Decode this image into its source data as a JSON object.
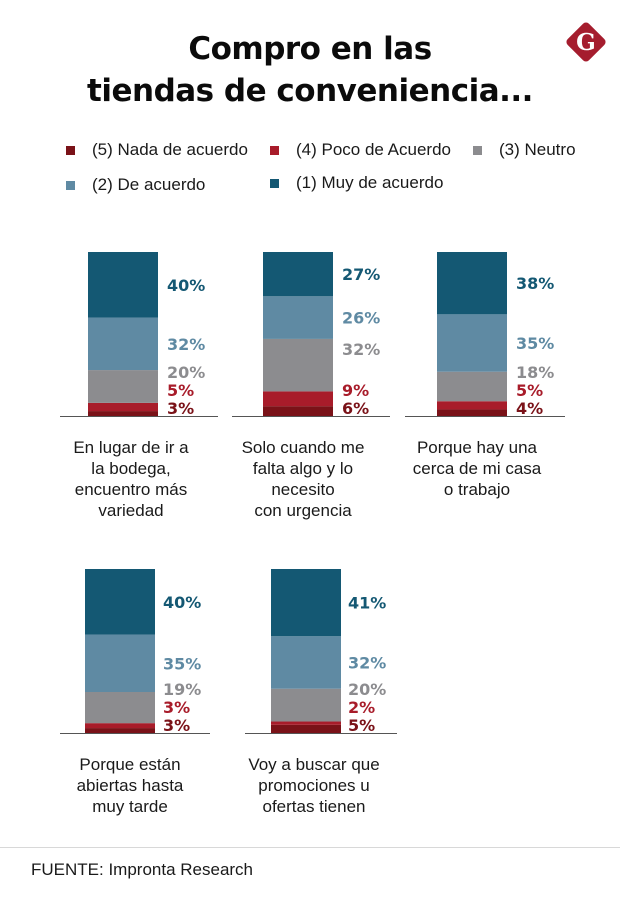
{
  "header": {
    "title_line1": "Compro en las",
    "title_line2": "tiendas de conveniencia...",
    "logo": "G",
    "logo_icon": "diamond-g-logo-icon"
  },
  "legend": [
    {
      "label": "(5) Nada de acuerdo",
      "color": "#7a1218"
    },
    {
      "label": "(4) Poco de Acuerdo",
      "color": "#a81c2a"
    },
    {
      "label": "(3) Neutro",
      "color": "#8c8c8f"
    },
    {
      "label": "(2) De acuerdo",
      "color": "#5f8aa3"
    },
    {
      "label": "(1) Muy de acuerdo",
      "color": "#145873"
    }
  ],
  "chart_data": {
    "type": "bar",
    "stacked": true,
    "title": "Compro en las tiendas de conveniencia...",
    "xlabel": "",
    "ylabel": "",
    "ylim": [
      0,
      100
    ],
    "unit": "%",
    "grid": false,
    "legend_position": "top",
    "categories": [
      [
        "En lugar de ir a",
        "la bodega,",
        "encuentro más",
        "variedad"
      ],
      [
        "Solo cuando me",
        "falta algo y lo",
        "necesito",
        "con urgencia"
      ],
      [
        "Porque hay una",
        "cerca de mi casa",
        "o trabajo"
      ],
      [
        "Porque están",
        "abiertas hasta",
        "muy tarde"
      ],
      [
        "Voy a buscar que",
        "promociones u",
        "ofertas tienen"
      ]
    ],
    "series": [
      {
        "name": "(5) Nada de acuerdo",
        "color": "#7a1218",
        "label_color": "#7a1218",
        "values": [
          3,
          6,
          4,
          3,
          5
        ]
      },
      {
        "name": "(4) Poco de Acuerdo",
        "color": "#a81c2a",
        "label_color": "#a81c2a",
        "values": [
          5,
          9,
          5,
          3,
          2
        ]
      },
      {
        "name": "(3) Neutro",
        "color": "#8c8c8f",
        "label_color": "#8c8c8f",
        "values": [
          20,
          32,
          18,
          19,
          20
        ]
      },
      {
        "name": "(2) De acuerdo",
        "color": "#5f8aa3",
        "label_color": "#5f8aa3",
        "values": [
          32,
          26,
          35,
          35,
          32
        ]
      },
      {
        "name": "(1) Muy de acuerdo",
        "color": "#145873",
        "label_color": "#145873",
        "values": [
          40,
          27,
          38,
          40,
          41
        ]
      }
    ]
  },
  "footer": {
    "source": "FUENTE: Impronta Research"
  }
}
